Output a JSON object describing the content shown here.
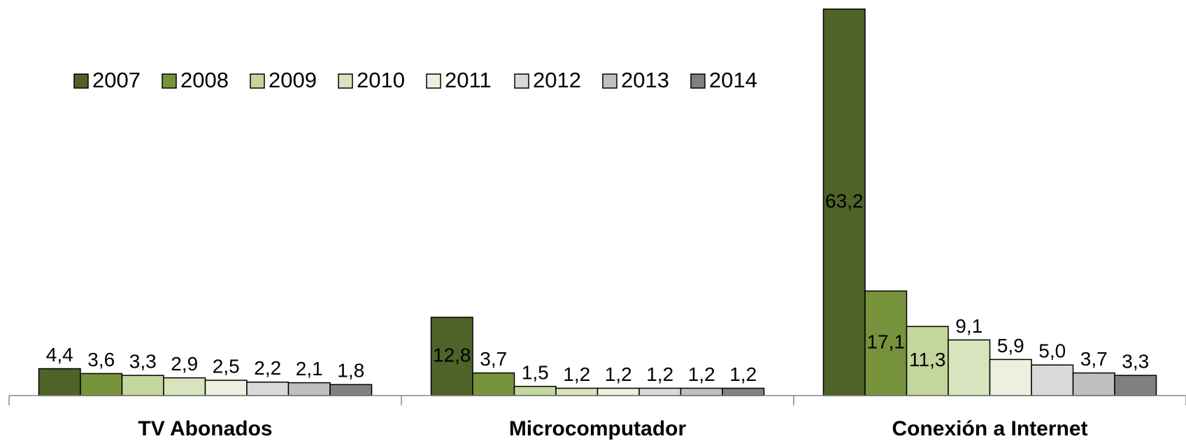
{
  "chart_data": {
    "type": "bar",
    "categories": [
      "TV Abonados",
      "Microcomputador",
      "Conexión a Internet"
    ],
    "legend": "top-left",
    "series": [
      {
        "name": "2007",
        "color": "#4f6228",
        "values": [
          4.4,
          12.8,
          63.2
        ],
        "value_labels": [
          "4,4",
          "12,8",
          "63,2"
        ]
      },
      {
        "name": "2008",
        "color": "#77933c",
        "values": [
          3.6,
          3.7,
          17.1
        ],
        "value_labels": [
          "3,6",
          "3,7",
          "17,1"
        ]
      },
      {
        "name": "2009",
        "color": "#c3d69b",
        "values": [
          3.3,
          1.5,
          11.3
        ],
        "value_labels": [
          "3,3",
          "1,5",
          "11,3"
        ]
      },
      {
        "name": "2010",
        "color": "#d7e4bd",
        "values": [
          2.9,
          1.2,
          9.1
        ],
        "value_labels": [
          "2,9",
          "1,2",
          "9,1"
        ]
      },
      {
        "name": "2011",
        "color": "#ebf1de",
        "values": [
          2.5,
          1.2,
          5.9
        ],
        "value_labels": [
          "2,5",
          "1,2",
          "5,9"
        ]
      },
      {
        "name": "2012",
        "color": "#d9d9d9",
        "values": [
          2.2,
          1.2,
          5.0
        ],
        "value_labels": [
          "2,2",
          "1,2",
          "5,0"
        ]
      },
      {
        "name": "2013",
        "color": "#bfbfbf",
        "values": [
          2.1,
          1.2,
          3.7
        ],
        "value_labels": [
          "2,1",
          "1,2",
          "3,7"
        ]
      },
      {
        "name": "2014",
        "color": "#808080",
        "values": [
          1.8,
          1.2,
          3.3
        ],
        "value_labels": [
          "1,8",
          "1,2",
          "3,3"
        ]
      }
    ]
  }
}
